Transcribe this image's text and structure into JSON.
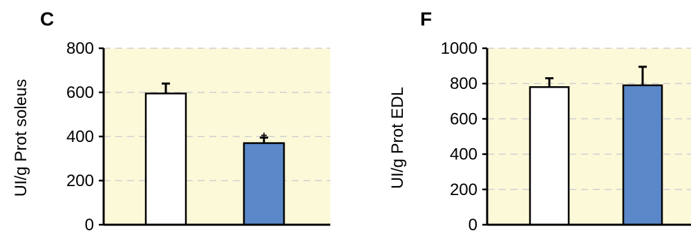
{
  "chart_data": [
    {
      "type": "bar",
      "panel_label": "C",
      "title": "",
      "xlabel": "",
      "ylabel": "UI/g Prot soleus",
      "ylim": [
        0,
        800
      ],
      "yticks": [
        0,
        200,
        400,
        600,
        800
      ],
      "grid": true,
      "background_color": "#fcf9d9",
      "bars": [
        {
          "value": 595,
          "error": 45,
          "color": "#ffffff",
          "marker": ""
        },
        {
          "value": 370,
          "error": 25,
          "color": "#5a88c8",
          "marker": "+"
        }
      ]
    },
    {
      "type": "bar",
      "panel_label": "F",
      "title": "",
      "xlabel": "",
      "ylabel": "UI/g Prot EDL",
      "ylim": [
        0,
        1000
      ],
      "yticks": [
        0,
        200,
        400,
        600,
        800,
        1000
      ],
      "grid": true,
      "background_color": "#fcf9d9",
      "bars": [
        {
          "value": 780,
          "error": 50,
          "color": "#ffffff",
          "marker": ""
        },
        {
          "value": 790,
          "error": 105,
          "color": "#5a88c8",
          "marker": ""
        }
      ]
    }
  ]
}
